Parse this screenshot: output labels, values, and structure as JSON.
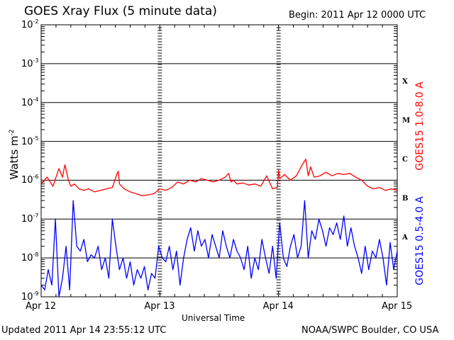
{
  "title": "GOES Xray Flux (5 minute data)",
  "begin": "Begin:  2011 Apr 12 0000 UTC",
  "updated": "Updated 2011 Apr 14 23:55:12 UTC",
  "credit": "NOAA/SWPC Boulder, CO USA",
  "colors": {
    "long": "#ff0000",
    "short": "#0000ff",
    "axis": "#000000"
  },
  "chart_data": {
    "type": "line",
    "title": "GOES Xray Flux (5 minute data)",
    "xlabel": "Universal Time",
    "ylabel": "Watts m-2",
    "y_scale": "log",
    "ylim": [
      1e-09,
      0.01
    ],
    "y_ticks": [
      {
        "base": "10",
        "exp": "-2"
      },
      {
        "base": "10",
        "exp": "-3"
      },
      {
        "base": "10",
        "exp": "-4"
      },
      {
        "base": "10",
        "exp": "-5"
      },
      {
        "base": "10",
        "exp": "-6"
      },
      {
        "base": "10",
        "exp": "-7"
      },
      {
        "base": "10",
        "exp": "-8"
      },
      {
        "base": "10",
        "exp": "-9"
      }
    ],
    "x_ticks": [
      "Apr 12",
      "Apr 13",
      "Apr 14",
      "Apr 15"
    ],
    "xlim": [
      "2011-04-12",
      "2011-04-15"
    ],
    "grid": true,
    "flare_classes": [
      "X",
      "M",
      "C",
      "B",
      "A"
    ],
    "series": [
      {
        "name": "GOES15 1.0-8.0 A",
        "color": "#ff0000",
        "x_days": [
          0,
          0.05,
          0.1,
          0.15,
          0.18,
          0.2,
          0.23,
          0.25,
          0.28,
          0.32,
          0.36,
          0.4,
          0.45,
          0.5,
          0.55,
          0.6,
          0.64,
          0.65,
          0.66,
          0.7,
          0.75,
          0.8,
          0.85,
          0.9,
          0.95,
          1.0,
          1.05,
          1.1,
          1.15,
          1.2,
          1.25,
          1.3,
          1.35,
          1.4,
          1.45,
          1.5,
          1.55,
          1.58,
          1.6,
          1.62,
          1.65,
          1.7,
          1.75,
          1.8,
          1.85,
          1.9,
          1.95,
          1.99,
          2.0,
          2.01,
          2.05,
          2.1,
          2.15,
          2.2,
          2.23,
          2.25,
          2.27,
          2.3,
          2.35,
          2.4,
          2.45,
          2.5,
          2.55,
          2.6,
          2.65,
          2.7,
          2.75,
          2.8,
          2.85,
          2.9,
          2.95,
          3.0
        ],
        "y": [
          8e-07,
          1.2e-06,
          7e-07,
          2e-06,
          1.2e-06,
          2.5e-06,
          1e-06,
          7e-07,
          8e-07,
          6e-07,
          5.5e-07,
          6e-07,
          5e-07,
          5.5e-07,
          6e-07,
          6.5e-07,
          1.5e-06,
          1.7e-06,
          8e-07,
          6e-07,
          5e-07,
          4.5e-07,
          4e-07,
          4.2e-07,
          4.5e-07,
          6e-07,
          5.5e-07,
          6.5e-07,
          9e-07,
          8e-07,
          1e-06,
          9e-07,
          1.1e-06,
          1e-06,
          9e-07,
          1e-06,
          1.2e-06,
          1.5e-06,
          9e-07,
          1e-06,
          8e-07,
          8.5e-07,
          7.5e-07,
          8e-07,
          7e-07,
          1.3e-06,
          6e-07,
          6.5e-07,
          1.8e-06,
          1.1e-06,
          1.4e-06,
          1e-06,
          1.3e-06,
          2.5e-06,
          3.5e-06,
          1.3e-06,
          2.2e-06,
          1.2e-06,
          1.3e-06,
          1.6e-06,
          1.3e-06,
          1.5e-06,
          1.4e-06,
          1.5e-06,
          1.2e-06,
          1e-06,
          7e-07,
          6e-07,
          6.5e-07,
          5.5e-07,
          6e-07,
          5.5e-07
        ]
      },
      {
        "name": "GOES15 0.5-4.0 A",
        "color": "#0000ff",
        "x_days": [
          0,
          0.03,
          0.06,
          0.09,
          0.12,
          0.15,
          0.18,
          0.21,
          0.24,
          0.27,
          0.3,
          0.33,
          0.36,
          0.39,
          0.42,
          0.45,
          0.48,
          0.51,
          0.54,
          0.57,
          0.6,
          0.63,
          0.66,
          0.69,
          0.72,
          0.75,
          0.78,
          0.81,
          0.84,
          0.87,
          0.9,
          0.93,
          0.96,
          0.99,
          1.02,
          1.05,
          1.08,
          1.11,
          1.14,
          1.17,
          1.2,
          1.23,
          1.26,
          1.29,
          1.32,
          1.35,
          1.38,
          1.41,
          1.44,
          1.47,
          1.5,
          1.53,
          1.56,
          1.59,
          1.62,
          1.65,
          1.68,
          1.71,
          1.74,
          1.77,
          1.8,
          1.83,
          1.86,
          1.89,
          1.92,
          1.95,
          1.98,
          2.01,
          2.04,
          2.07,
          2.1,
          2.13,
          2.16,
          2.19,
          2.22,
          2.25,
          2.28,
          2.31,
          2.34,
          2.37,
          2.4,
          2.43,
          2.46,
          2.49,
          2.52,
          2.55,
          2.58,
          2.61,
          2.64,
          2.67,
          2.7,
          2.73,
          2.76,
          2.79,
          2.82,
          2.85,
          2.88,
          2.91,
          2.94,
          2.97,
          3.0
        ],
        "y": [
          2e-09,
          1.5e-09,
          5e-09,
          2e-09,
          1e-07,
          1e-09,
          3e-09,
          2e-08,
          1.5e-09,
          3e-07,
          2e-08,
          1.5e-08,
          3e-08,
          8e-09,
          1.2e-08,
          1e-08,
          2e-08,
          5e-09,
          1e-08,
          3e-09,
          1e-07,
          2e-08,
          5e-09,
          1e-08,
          3e-09,
          8e-09,
          2e-09,
          5e-09,
          3e-09,
          6e-09,
          1.5e-09,
          4e-09,
          3e-09,
          2e-08,
          1e-08,
          8e-09,
          2e-08,
          5e-09,
          1.5e-08,
          2e-09,
          1e-08,
          3e-08,
          6e-08,
          1.5e-08,
          5e-08,
          2e-08,
          3e-08,
          1e-08,
          4e-08,
          2e-08,
          1e-08,
          5e-08,
          2e-08,
          1e-08,
          3e-08,
          1.5e-08,
          1e-08,
          5e-09,
          2e-08,
          3e-09,
          1e-08,
          5e-09,
          3e-08,
          1e-08,
          4e-09,
          2e-08,
          3e-09,
          8e-08,
          1e-08,
          6e-09,
          2e-08,
          4e-08,
          1e-08,
          2e-08,
          3e-07,
          1e-08,
          5e-08,
          3e-08,
          1e-07,
          5e-08,
          2e-08,
          6e-08,
          4e-08,
          8e-08,
          3e-08,
          1.2e-07,
          2e-08,
          6e-08,
          2e-08,
          1e-08,
          4e-09,
          2e-08,
          5e-09,
          1.5e-08,
          1e-08,
          3e-08,
          1e-08,
          2e-09,
          2.5e-08,
          5e-09,
          1.5e-08
        ]
      }
    ]
  }
}
